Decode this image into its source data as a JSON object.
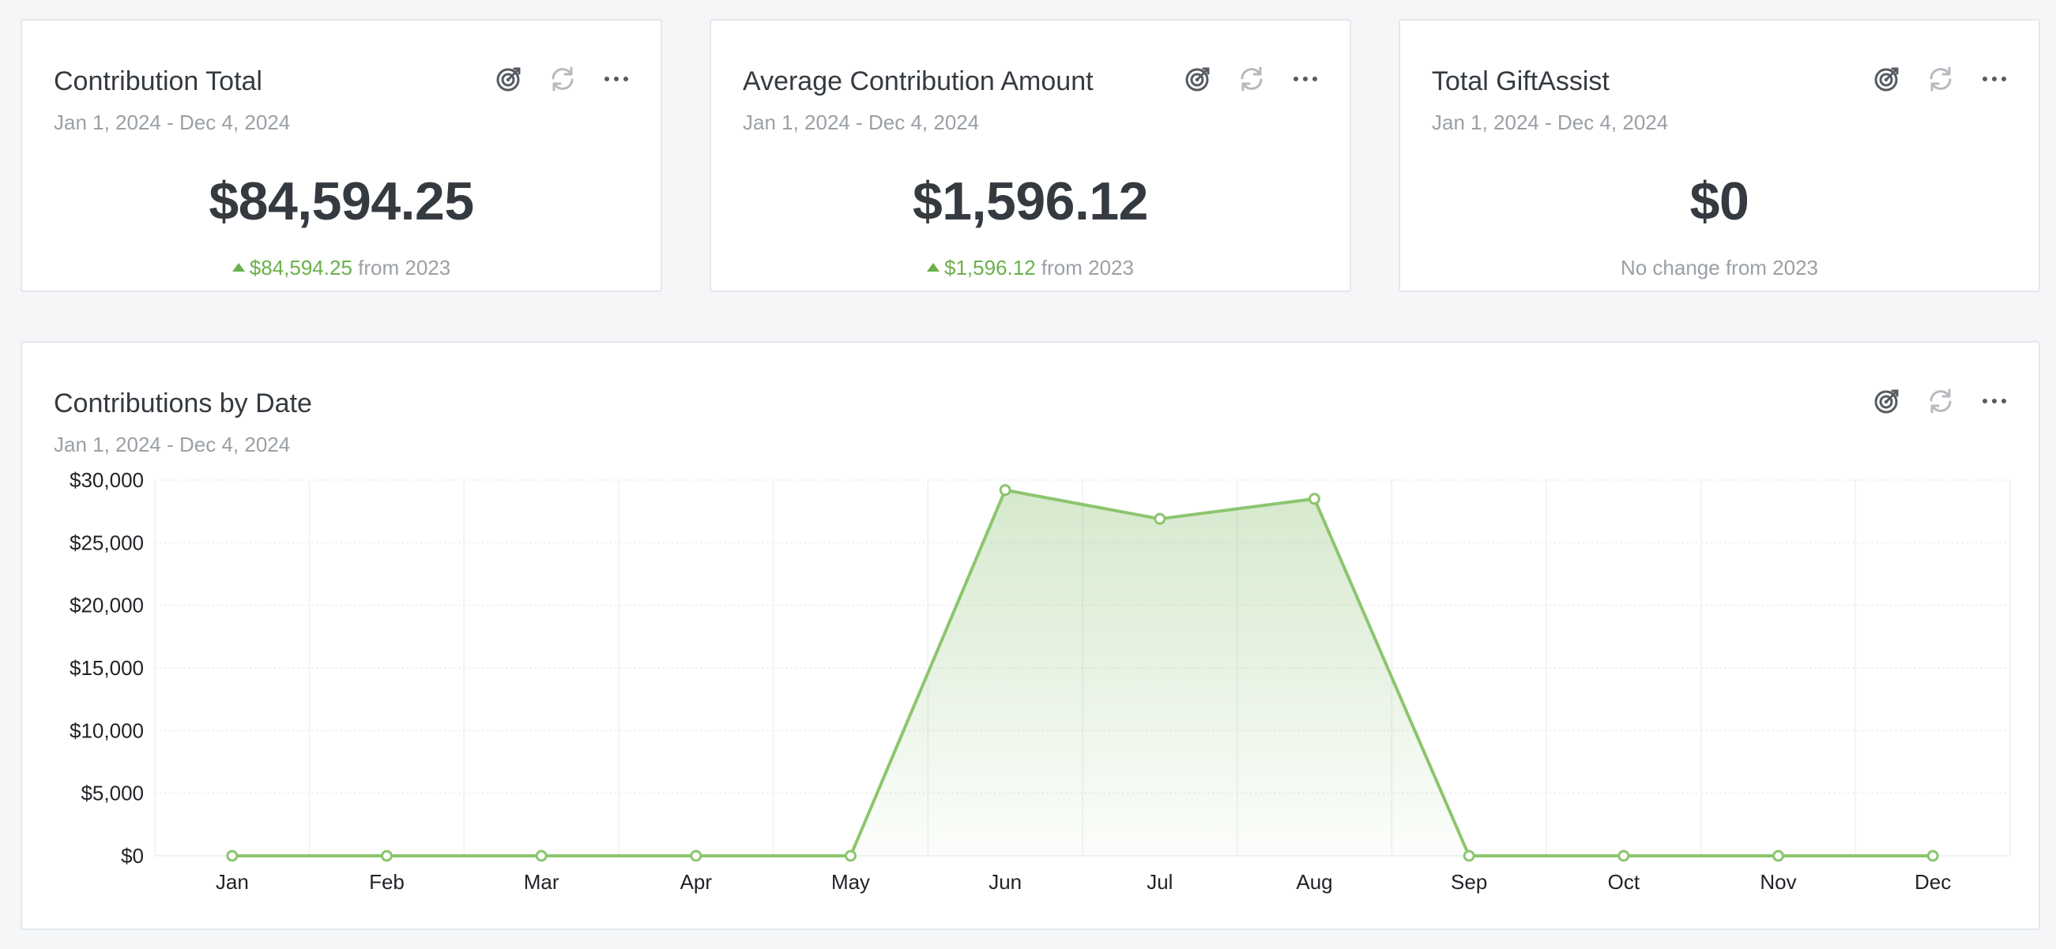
{
  "cards": [
    {
      "title": "Contribution Total",
      "date_range": "Jan 1, 2024 - Dec 4, 2024",
      "value": "$84,594.25",
      "delta_value": "$84,594.25",
      "delta_suffix": " from 2023",
      "direction": "up"
    },
    {
      "title": "Average Contribution Amount",
      "date_range": "Jan 1, 2024 - Dec 4, 2024",
      "value": "$1,596.12",
      "delta_value": "$1,596.12",
      "delta_suffix": " from 2023",
      "direction": "up"
    },
    {
      "title": "Total GiftAssist",
      "date_range": "Jan 1, 2024 - Dec 4, 2024",
      "value": "$0",
      "delta_text": "No change from 2023",
      "direction": "none"
    }
  ],
  "chart_card": {
    "title": "Contributions by Date",
    "date_range": "Jan 1, 2024 - Dec 4, 2024"
  },
  "icons": [
    "goal-target-icon",
    "refresh-icon",
    "more-icon"
  ],
  "colors": {
    "accent_green": "#6ab04c",
    "line_green": "#8cc56e",
    "text_dark": "#343a40",
    "text_muted": "#9aa0a6",
    "icon_dark": "#555b61",
    "icon_light": "#b5babf"
  },
  "chart_data": {
    "type": "area",
    "categories": [
      "Jan",
      "Feb",
      "Mar",
      "Apr",
      "May",
      "Jun",
      "Jul",
      "Aug",
      "Sep",
      "Oct",
      "Nov",
      "Dec"
    ],
    "series": [
      {
        "values": [
          0,
          0,
          0,
          0,
          0,
          29200,
          26900,
          28500,
          0,
          0,
          0,
          0
        ]
      }
    ],
    "yticks": [
      "$0",
      "$5,000",
      "$10,000",
      "$15,000",
      "$20,000",
      "$25,000",
      "$30,000"
    ],
    "ylim": [
      0,
      30000
    ],
    "grid": true,
    "legend": "none"
  }
}
